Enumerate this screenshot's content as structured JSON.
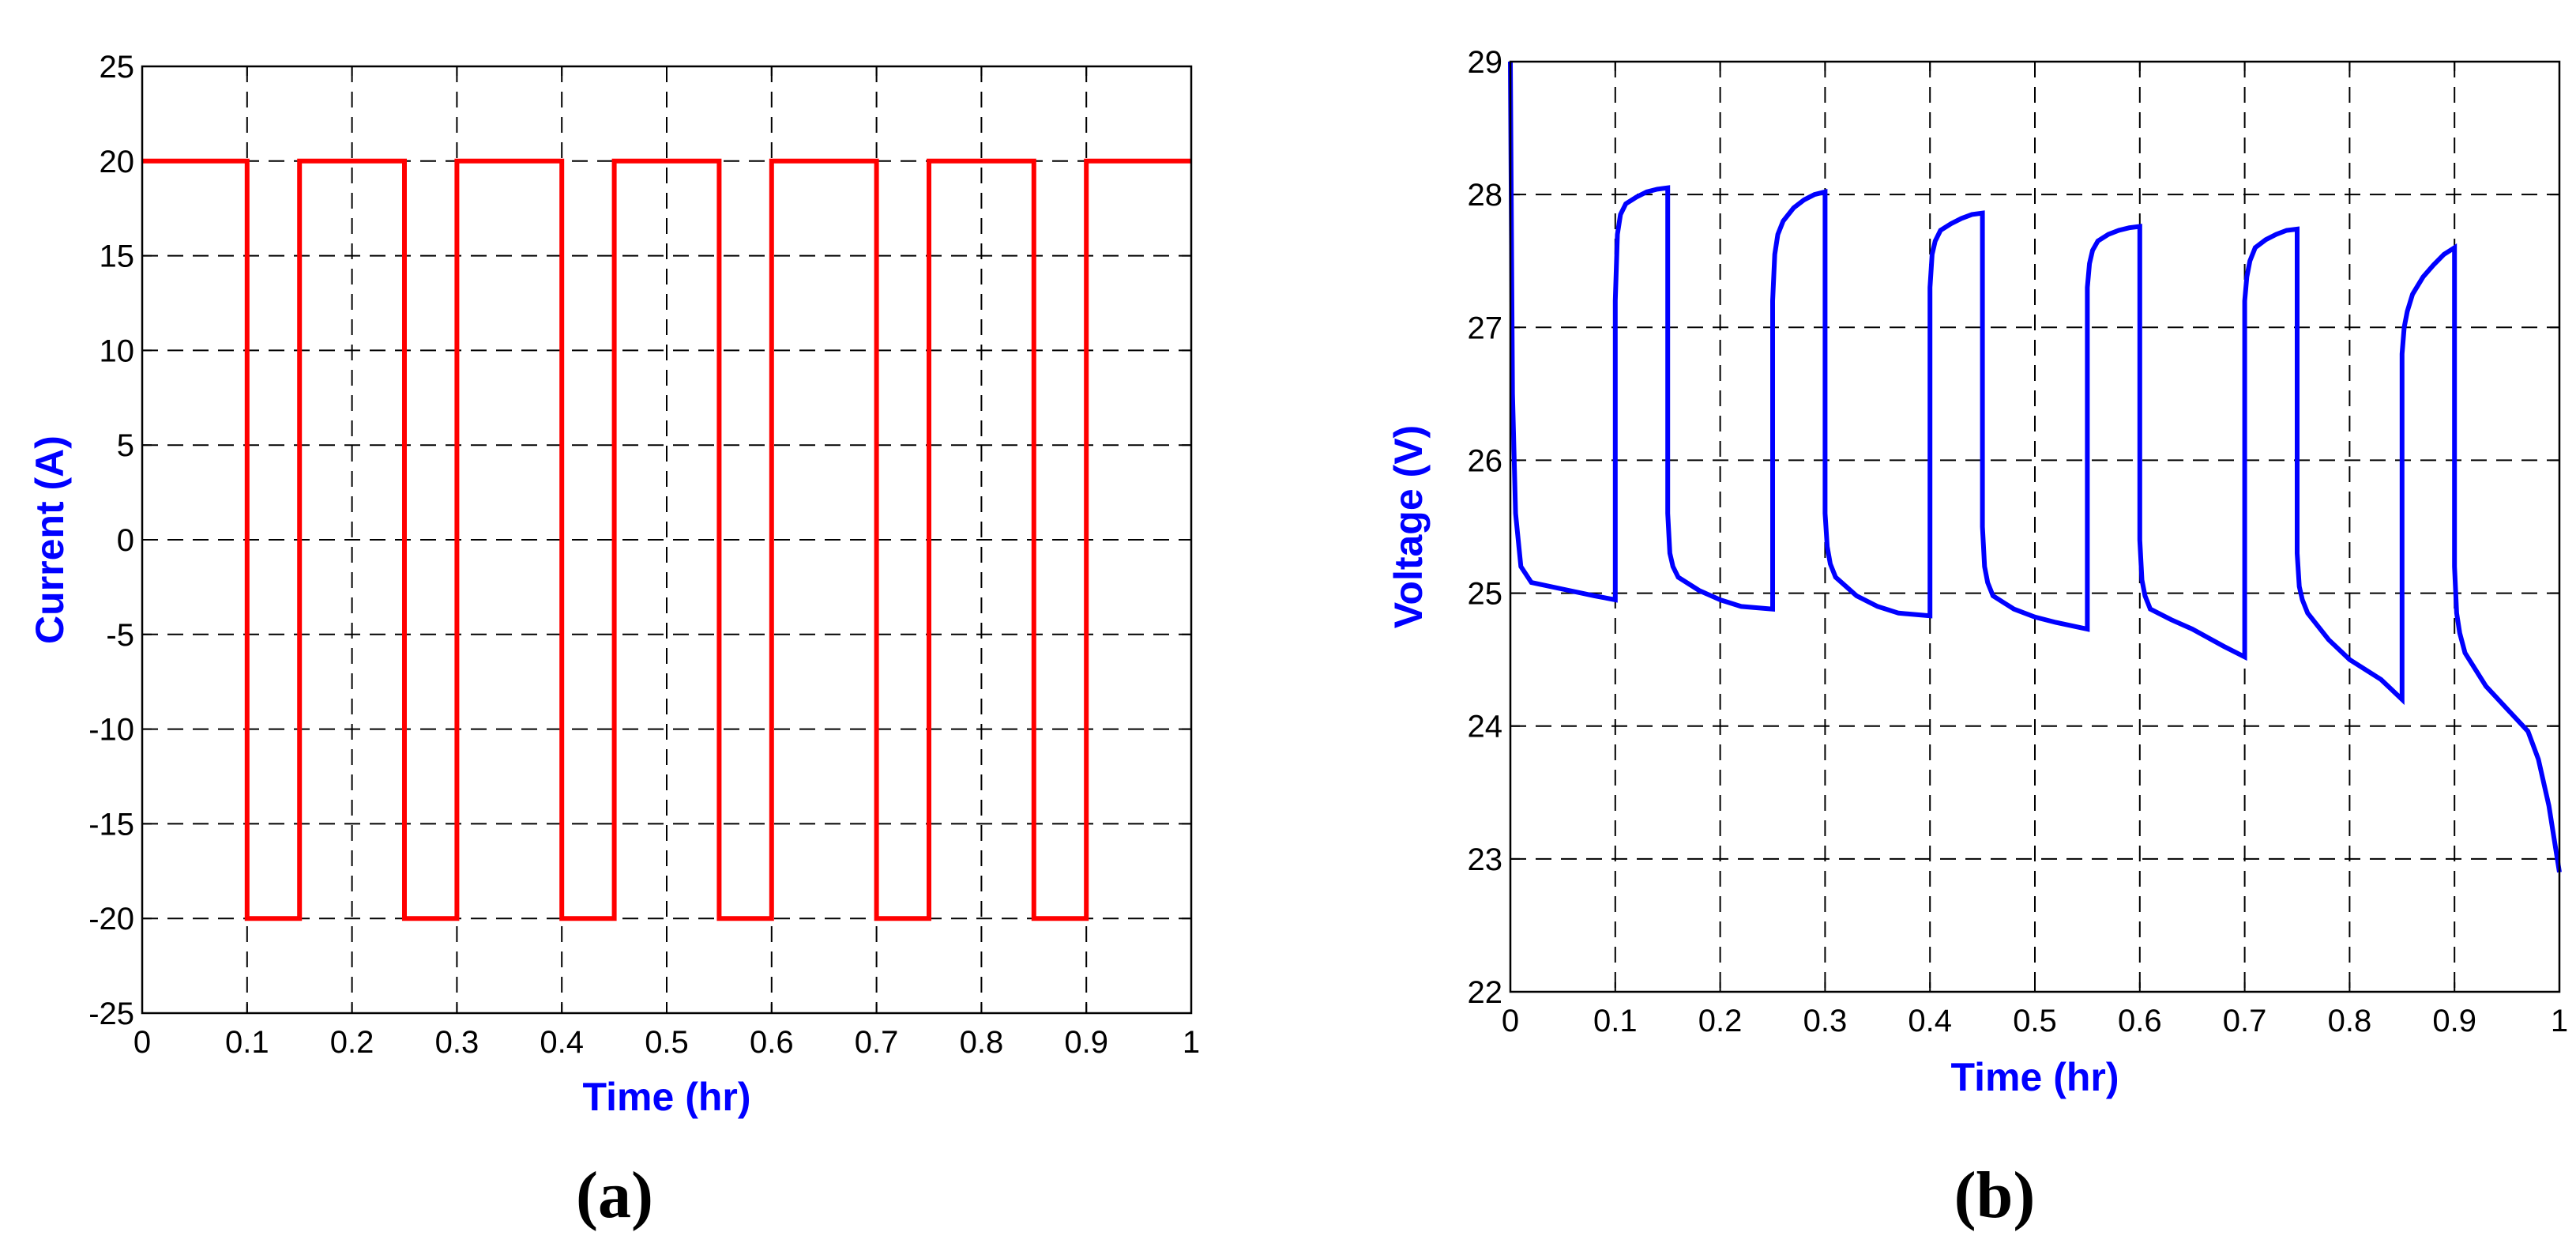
{
  "chart_data": [
    {
      "type": "line",
      "panel_label": "(a)",
      "xlabel": "Time (hr)",
      "ylabel": "Current (A)",
      "xlim": [
        0,
        1
      ],
      "ylim": [
        -25,
        25
      ],
      "xticks": [
        0,
        0.1,
        0.2,
        0.3,
        0.4,
        0.5,
        0.6,
        0.7,
        0.8,
        0.9,
        1
      ],
      "yticks": [
        -25,
        -20,
        -15,
        -10,
        -5,
        0,
        5,
        10,
        15,
        20,
        25
      ],
      "grid": true,
      "line_color": "#ff0000",
      "label_color": "#0000ff",
      "series": [
        {
          "x": [
            0,
            0.1,
            0.1,
            0.15,
            0.15,
            0.25,
            0.25,
            0.3,
            0.3,
            0.4,
            0.4,
            0.45,
            0.45,
            0.55,
            0.55,
            0.6,
            0.6,
            0.7,
            0.7,
            0.75,
            0.75,
            0.85,
            0.85,
            0.9,
            0.9,
            1
          ],
          "y": [
            20,
            20,
            -20,
            -20,
            20,
            20,
            -20,
            -20,
            20,
            20,
            -20,
            -20,
            20,
            20,
            -20,
            -20,
            20,
            20,
            -20,
            -20,
            20,
            20,
            -20,
            -20,
            20,
            20
          ]
        }
      ]
    },
    {
      "type": "line",
      "panel_label": "(b)",
      "xlabel": "Time (hr)",
      "ylabel": "Voltage (V)",
      "xlim": [
        0,
        1
      ],
      "ylim": [
        22,
        29
      ],
      "xticks": [
        0,
        0.1,
        0.2,
        0.3,
        0.4,
        0.5,
        0.6,
        0.7,
        0.8,
        0.9,
        1
      ],
      "yticks": [
        22,
        23,
        24,
        25,
        26,
        27,
        28,
        29
      ],
      "grid": true,
      "line_color": "#0000ff",
      "label_color": "#0000ff",
      "series": [
        {
          "x": [
            0,
            0.002,
            0.005,
            0.01,
            0.02,
            0.05,
            0.08,
            0.1,
            0.1,
            0.102,
            0.105,
            0.11,
            0.12,
            0.13,
            0.14,
            0.15,
            0.15,
            0.152,
            0.155,
            0.16,
            0.18,
            0.2,
            0.22,
            0.25,
            0.25,
            0.252,
            0.255,
            0.26,
            0.27,
            0.28,
            0.29,
            0.3,
            0.3,
            0.302,
            0.305,
            0.31,
            0.33,
            0.35,
            0.37,
            0.4,
            0.4,
            0.402,
            0.405,
            0.41,
            0.42,
            0.43,
            0.44,
            0.45,
            0.45,
            0.452,
            0.455,
            0.46,
            0.48,
            0.5,
            0.52,
            0.55,
            0.55,
            0.552,
            0.555,
            0.56,
            0.57,
            0.58,
            0.59,
            0.6,
            0.6,
            0.602,
            0.605,
            0.61,
            0.63,
            0.65,
            0.68,
            0.7,
            0.7,
            0.702,
            0.705,
            0.71,
            0.72,
            0.73,
            0.74,
            0.75,
            0.75,
            0.752,
            0.755,
            0.76,
            0.78,
            0.8,
            0.83,
            0.85,
            0.85,
            0.852,
            0.855,
            0.86,
            0.87,
            0.88,
            0.89,
            0.9,
            0.9,
            0.902,
            0.905,
            0.91,
            0.93,
            0.95,
            0.97,
            0.98,
            0.99,
            1.0
          ],
          "y": [
            29,
            26.5,
            25.6,
            25.2,
            25.08,
            25.03,
            24.98,
            24.95,
            27.2,
            27.7,
            27.85,
            27.93,
            27.98,
            28.02,
            28.04,
            28.05,
            25.6,
            25.3,
            25.2,
            25.12,
            25.02,
            24.95,
            24.9,
            24.88,
            27.2,
            27.55,
            27.7,
            27.8,
            27.9,
            27.96,
            28.0,
            28.02,
            25.6,
            25.35,
            25.22,
            25.12,
            24.98,
            24.9,
            24.85,
            24.83,
            27.3,
            27.55,
            27.65,
            27.73,
            27.78,
            27.82,
            27.85,
            27.86,
            25.5,
            25.2,
            25.08,
            24.98,
            24.88,
            24.82,
            24.78,
            24.73,
            27.3,
            27.48,
            27.58,
            27.65,
            27.7,
            27.73,
            27.75,
            27.76,
            25.4,
            25.1,
            24.98,
            24.88,
            24.8,
            24.73,
            24.6,
            24.52,
            27.2,
            27.38,
            27.5,
            27.6,
            27.66,
            27.7,
            27.73,
            27.74,
            25.3,
            25.05,
            24.95,
            24.85,
            24.65,
            24.5,
            24.35,
            24.2,
            26.8,
            27.0,
            27.12,
            27.25,
            27.38,
            27.47,
            27.55,
            27.6,
            25.2,
            24.85,
            24.7,
            24.55,
            24.3,
            24.13,
            23.96,
            23.75,
            23.4,
            22.9
          ]
        }
      ]
    }
  ]
}
